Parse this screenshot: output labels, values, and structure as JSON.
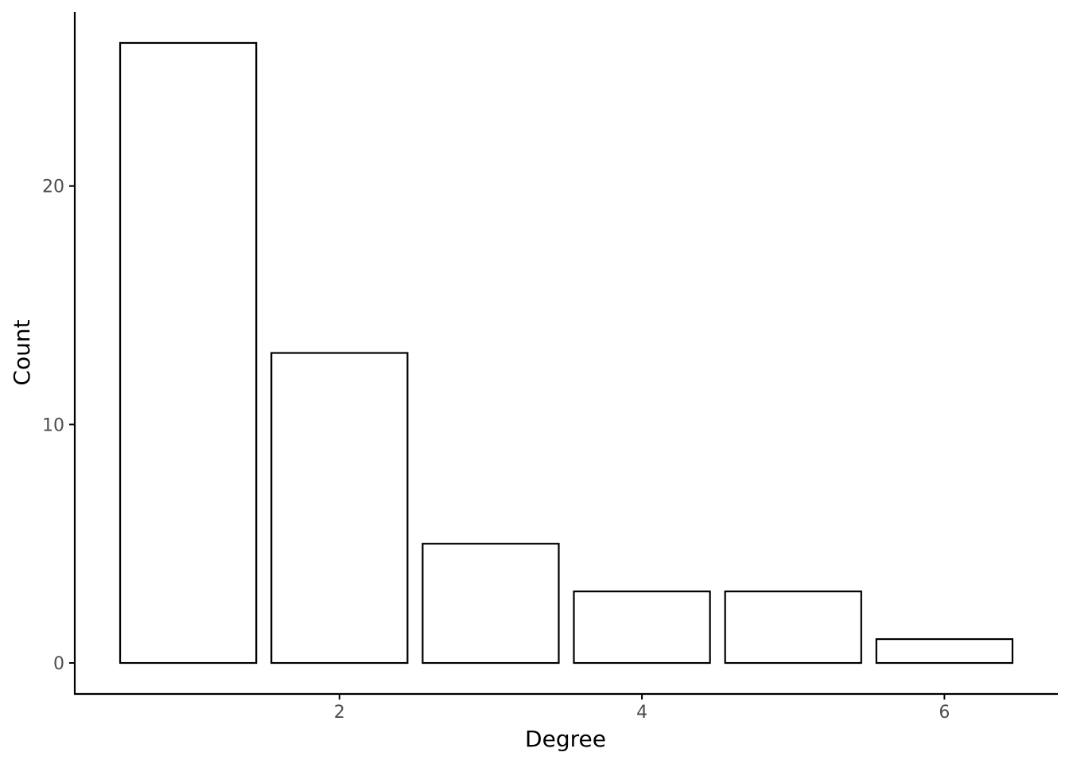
{
  "chart_data": {
    "type": "bar",
    "x": [
      1,
      2,
      3,
      4,
      5,
      6
    ],
    "values": [
      26,
      13,
      5,
      3,
      3,
      1
    ],
    "xlabel": "Degree",
    "ylabel": "Count",
    "xticks": [
      2,
      4,
      6
    ],
    "yticks": [
      0,
      10,
      20
    ],
    "xlim": [
      0.25,
      6.75
    ],
    "ylim": [
      -1.3,
      27.3
    ],
    "bar_fill": "#ffffff",
    "bar_stroke": "#000000",
    "grid": false,
    "legend": "none"
  }
}
